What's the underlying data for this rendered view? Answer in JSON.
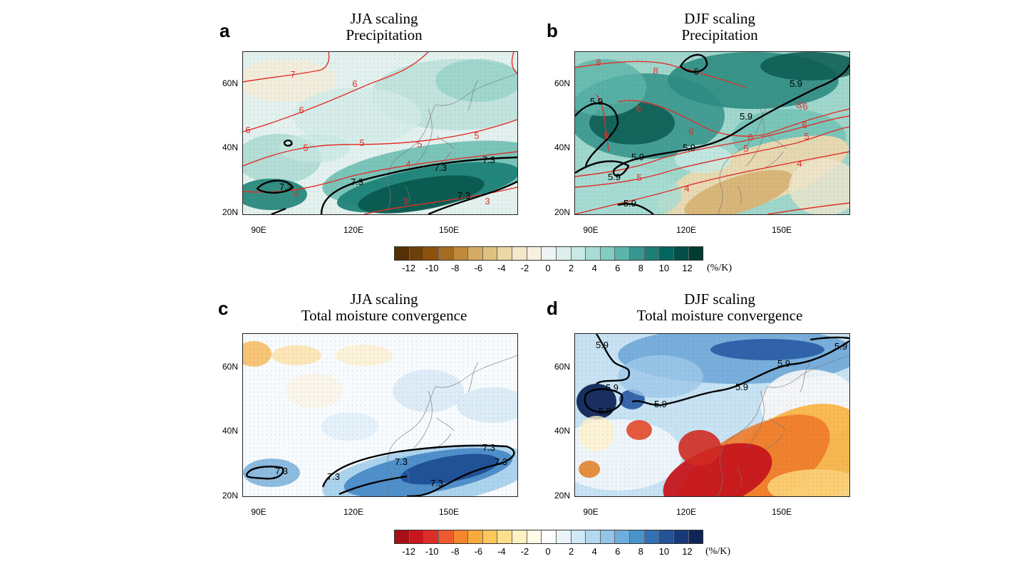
{
  "panels": [
    {
      "letter": "a",
      "title1": "JJA scaling",
      "title2": "Precipitation",
      "threshold": "7.3",
      "field": "brbg"
    },
    {
      "letter": "b",
      "title1": "DJF scaling",
      "title2": "Precipitation",
      "threshold": "5.9",
      "field": "brbg"
    },
    {
      "letter": "c",
      "title1": "JJA scaling",
      "title2": "Total moisture convergence",
      "threshold": "7.3",
      "field": "rdbu"
    },
    {
      "letter": "d",
      "title1": "DJF scaling",
      "title2": "Total moisture convergence",
      "threshold": "5.9",
      "field": "rdbu"
    }
  ],
  "axes": {
    "lat_labels": [
      "60N",
      "40N",
      "20N"
    ],
    "lon_labels": [
      "90E",
      "120E",
      "150E"
    ]
  },
  "colorbar_top": {
    "labels": [
      "-12",
      "-10",
      "-8",
      "-6",
      "-4",
      "-2",
      "0",
      "2",
      "4",
      "6",
      "8",
      "10",
      "12"
    ],
    "unit": "(%/K)",
    "colors": [
      "#543005",
      "#6e4009",
      "#8c510a",
      "#a56c21",
      "#bf8a3a",
      "#d4ab62",
      "#dfc27d",
      "#ead7a6",
      "#f3e8c8",
      "#f6f0e0",
      "#eef5f4",
      "#dcefec",
      "#c7eae5",
      "#a8dcd4",
      "#80cdc1",
      "#5db5a9",
      "#35978f",
      "#1d7f77",
      "#01665e",
      "#014f47",
      "#003c30"
    ]
  },
  "colorbar_bottom": {
    "labels": [
      "-12",
      "-10",
      "-8",
      "-6",
      "-4",
      "-2",
      "0",
      "2",
      "4",
      "6",
      "8",
      "10",
      "12"
    ],
    "unit": "(%/K)",
    "colors": [
      "#a50f15",
      "#c8161e",
      "#de2d26",
      "#ef5a2e",
      "#f5862c",
      "#f9ab3a",
      "#fcc85a",
      "#fee08b",
      "#fff2c0",
      "#fffbe8",
      "#ffffff",
      "#eaf4fb",
      "#d1e8f6",
      "#b3d9f1",
      "#92c5e8",
      "#6eaedd",
      "#4a92cb",
      "#3271b5",
      "#225497",
      "#193a7a",
      "#0f2557"
    ]
  },
  "contour_labels": {
    "a": [
      "7",
      "6",
      "6",
      "6",
      "5",
      "5",
      "5",
      "5",
      "4",
      "4",
      "3",
      "3",
      "7.3",
      "7.3",
      "7.3",
      "7.3",
      "7.3"
    ],
    "b": [
      "8",
      "8",
      "9",
      "6",
      "6",
      "6",
      "6",
      "6",
      "5",
      "5",
      "5",
      "4",
      "4",
      "8",
      "6",
      "5.9",
      "5.9",
      "5.9",
      "5.9",
      "5.9",
      "5.9",
      "5.9"
    ],
    "c": [
      "7.3",
      "7.3",
      "7.3",
      "7.3",
      "7.3",
      "7.3"
    ],
    "d": [
      "5.9",
      "5.9",
      "5.9",
      "5.9",
      "5.9",
      "5.9",
      "5.9"
    ]
  }
}
